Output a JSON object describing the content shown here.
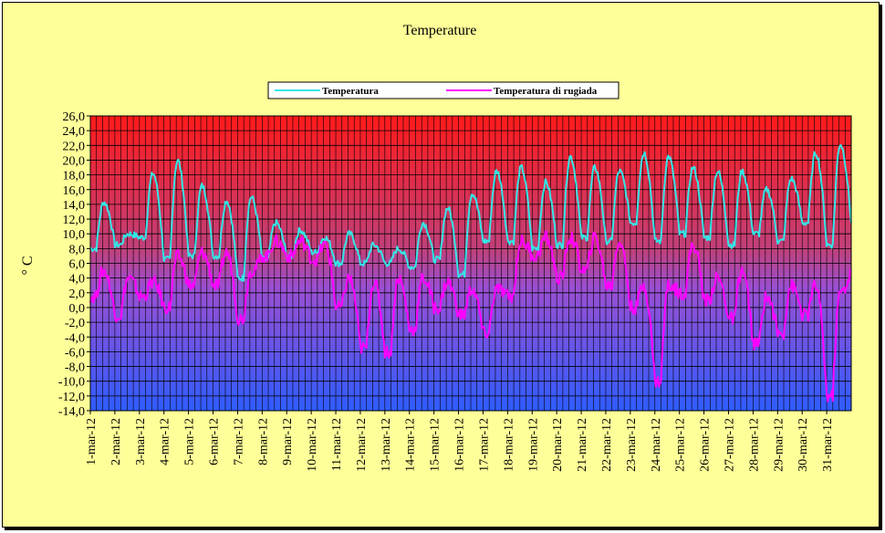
{
  "chart_data": {
    "type": "line",
    "title": "Temperature",
    "ylabel": "° C",
    "xlabel": "",
    "ylim": [
      -14,
      26
    ],
    "ystep": 2,
    "y_ticks": [
      "26,0",
      "24,0",
      "22,0",
      "20,0",
      "18,0",
      "16,0",
      "14,0",
      "12,0",
      "10,0",
      "8,0",
      "6,0",
      "4,0",
      "2,0",
      "0,0",
      "-2,0",
      "-4,0",
      "-6,0",
      "-8,0",
      "-10,0",
      "-12,0",
      "-14,0"
    ],
    "categories": [
      "1-mar-12",
      "2-mar-12",
      "3-mar-12",
      "4-mar-12",
      "5-mar-12",
      "6-mar-12",
      "7-mar-12",
      "8-mar-12",
      "9-mar-12",
      "10-mar-12",
      "11-mar-12",
      "12-mar-12",
      "13-mar-12",
      "14-mar-12",
      "15-mar-12",
      "16-mar-12",
      "17-mar-12",
      "18-mar-12",
      "19-mar-12",
      "20-mar-12",
      "21-mar-12",
      "22-mar-12",
      "23-mar-12",
      "24-mar-12",
      "25-mar-12",
      "26-mar-12",
      "27-mar-12",
      "28-mar-12",
      "29-mar-12",
      "30-mar-12",
      "31-mar-12"
    ],
    "daily_min_max": true,
    "legend": "top-center",
    "grid": true,
    "series": [
      {
        "name": "Temperatura",
        "color": "#33e6e6",
        "min": [
          8,
          8.5,
          9.5,
          6.5,
          7,
          7,
          4,
          6.5,
          7,
          7.5,
          6,
          6,
          6,
          5.5,
          6.5,
          4.5,
          9,
          9,
          8,
          8.5,
          9.5,
          9,
          11.5,
          9,
          10,
          9.5,
          8.5,
          10,
          9,
          11.5,
          8.5
        ],
        "max": [
          14.3,
          10,
          18.2,
          20,
          16.5,
          14.5,
          15,
          11.5,
          10.5,
          9.5,
          10,
          8.5,
          8,
          11.5,
          13.5,
          15.5,
          18.5,
          19,
          17,
          20.5,
          19,
          18.5,
          21,
          20.5,
          19,
          18.5,
          18.5,
          16,
          17.5,
          21,
          22.2
        ],
        "end": 11.5
      },
      {
        "name": "Temperatura di rugiada",
        "color": "#ff00ff",
        "min": [
          1.5,
          -1,
          1.5,
          0,
          3,
          3,
          -1.5,
          7,
          7,
          6.5,
          0,
          -5.5,
          -6,
          -3,
          0,
          -1,
          -3.5,
          1.5,
          7,
          4,
          5,
          3,
          0,
          -10,
          2,
          1,
          -1.5,
          -5,
          -3.5,
          -1,
          -12
        ],
        "max": [
          5,
          4,
          3.5,
          7,
          7.5,
          7.5,
          5,
          9,
          9,
          8.5,
          4,
          3.5,
          4,
          4,
          3.5,
          2.5,
          2.5,
          9,
          9.5,
          9.5,
          9.5,
          9,
          3,
          3,
          8.5,
          4,
          5,
          1.5,
          3,
          3,
          2
        ],
        "end": 5
      }
    ]
  }
}
